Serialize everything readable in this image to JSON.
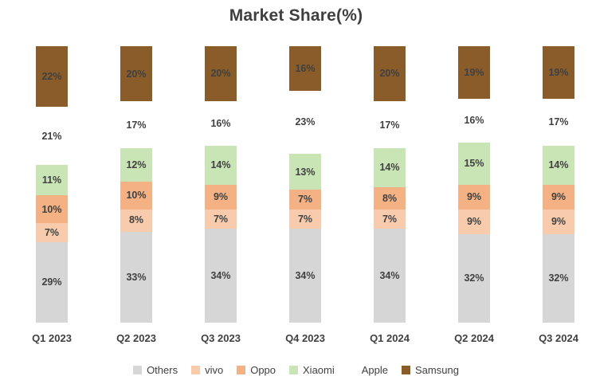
{
  "title": "Market Share(%)",
  "chart_data": {
    "type": "bar",
    "stacked": true,
    "title": "Market Share(%)",
    "xlabel": "",
    "ylabel": "",
    "ylim": [
      0,
      100
    ],
    "grid": false,
    "legend_position": "bottom",
    "value_suffix": "%",
    "categories": [
      "Q1 2023",
      "Q2 2023",
      "Q3 2023",
      "Q4 2023",
      "Q1 2024",
      "Q2 2024",
      "Q3 2024"
    ],
    "series": [
      {
        "name": "Others",
        "color": "#d6d6d6",
        "label_color": "#404040",
        "values": [
          29,
          33,
          34,
          34,
          34,
          32,
          32
        ]
      },
      {
        "name": "vivo",
        "color": "#f8cbad",
        "label_color": "#404040",
        "values": [
          7,
          8,
          7,
          7,
          7,
          9,
          9
        ]
      },
      {
        "name": "Oppo",
        "color": "#f4b183",
        "label_color": "#404040",
        "values": [
          10,
          10,
          9,
          7,
          8,
          9,
          9
        ]
      },
      {
        "name": "Xiaomi",
        "color": "#c9e4b5",
        "label_color": "#404040",
        "values": [
          11,
          12,
          14,
          13,
          14,
          15,
          14
        ]
      },
      {
        "name": "Apple",
        "color": "#ffffff",
        "label_color": "#404040",
        "values": [
          21,
          17,
          16,
          23,
          17,
          16,
          17
        ]
      },
      {
        "name": "Samsung",
        "color": "#8a5c2a",
        "label_color": "#404040",
        "values": [
          22,
          20,
          20,
          16,
          20,
          19,
          19
        ]
      }
    ]
  }
}
